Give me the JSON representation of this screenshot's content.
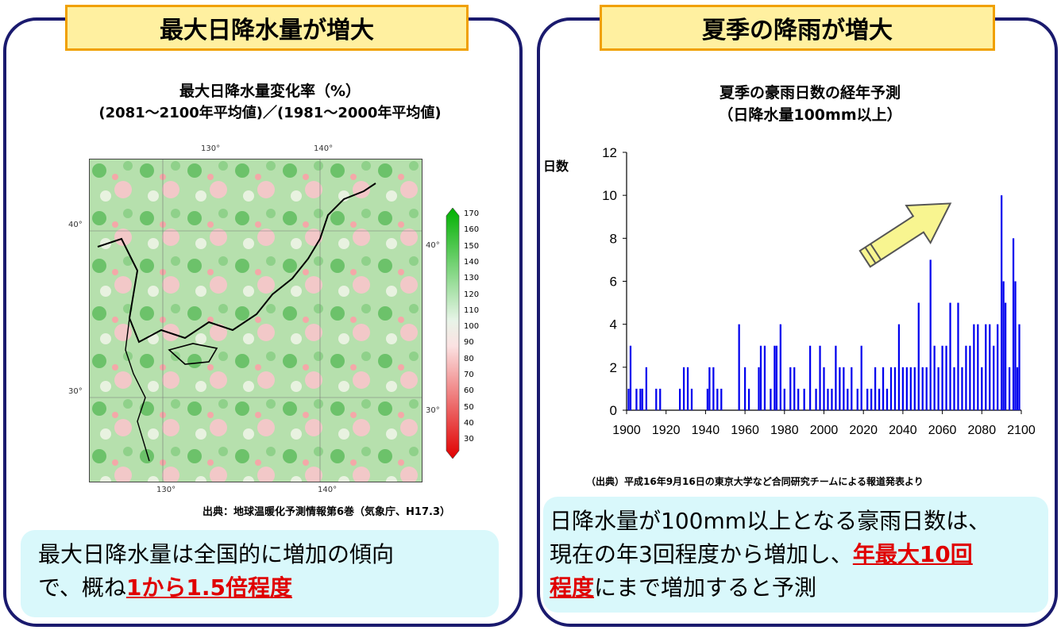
{
  "left": {
    "banner": "最大日降水量が増大",
    "map_title_1": "最大日降水量変化率（%）",
    "map_title_2": "(2081～2100年平均値)／(1981～2000年平均値)",
    "lon_labels": [
      "130°",
      "140°"
    ],
    "lat_labels": [
      "40°",
      "30°"
    ],
    "colorbar": [
      "170",
      "160",
      "150",
      "140",
      "130",
      "120",
      "110",
      "100",
      "90",
      "80",
      "70",
      "60",
      "50",
      "40",
      "30"
    ],
    "source": "出典：地球温暖化予測情報第6巻（気象庁、H17.3）",
    "callout_1": "最大日降水量は全国的に増加の傾向",
    "callout_2a": "で、概ね",
    "callout_2b": "1から1.5倍程度"
  },
  "right": {
    "banner": "夏季の降雨が増大",
    "source": "（出典）平成16年9月16日の東京大学など合同研究チームによる報道発表より",
    "callout_1": "日降水量が100mm以上となる豪雨日数は、",
    "callout_2a": "現在の年3回程度から増加し、",
    "callout_2b": "年最大10回",
    "callout_3a": "程度",
    "callout_3b": "にまで増加すると予測"
  },
  "chart_data": {
    "type": "bar",
    "title": "夏季の豪雨日数の経年予測",
    "subtitle": "（日降水量100mm以上）",
    "ylabel": "日数",
    "xlabel": "",
    "ylim": [
      0,
      12
    ],
    "xlim": [
      1900,
      2100
    ],
    "yticks": [
      0,
      2,
      4,
      6,
      8,
      10,
      12
    ],
    "xticks": [
      1900,
      1920,
      1940,
      1960,
      1980,
      2000,
      2020,
      2040,
      2060,
      2080,
      2100
    ],
    "series_color": "#0000ee",
    "x": [
      1901,
      1902,
      1905,
      1907,
      1908,
      1910,
      1915,
      1917,
      1927,
      1929,
      1931,
      1933,
      1941,
      1942,
      1944,
      1946,
      1948,
      1957,
      1960,
      1962,
      1967,
      1968,
      1970,
      1973,
      1975,
      1976,
      1978,
      1980,
      1983,
      1985,
      1987,
      1990,
      1993,
      1996,
      1998,
      2000,
      2002,
      2004,
      2006,
      2008,
      2010,
      2012,
      2014,
      2017,
      2019,
      2022,
      2024,
      2026,
      2028,
      2030,
      2032,
      2034,
      2036,
      2038,
      2040,
      2042,
      2044,
      2046,
      2048,
      2050,
      2052,
      2054,
      2056,
      2058,
      2060,
      2062,
      2064,
      2066,
      2068,
      2070,
      2072,
      2074,
      2076,
      2078,
      2080,
      2082,
      2084,
      2086,
      2088,
      2090,
      2091,
      2092,
      2094,
      2096,
      2097,
      2098,
      2099
    ],
    "values": [
      1,
      3,
      1,
      1,
      1,
      2,
      1,
      1,
      1,
      2,
      2,
      1,
      1,
      2,
      2,
      1,
      1,
      4,
      2,
      1,
      2,
      3,
      3,
      1,
      3,
      3,
      4,
      1,
      2,
      2,
      1,
      1,
      3,
      1,
      3,
      2,
      1,
      1,
      3,
      2,
      2,
      1,
      2,
      1,
      3,
      1,
      1,
      2,
      1,
      2,
      1,
      2,
      2,
      4,
      2,
      2,
      2,
      2,
      5,
      2,
      2,
      7,
      3,
      2,
      3,
      3,
      5,
      2,
      5,
      2,
      3,
      3,
      4,
      4,
      2,
      4,
      4,
      3,
      4,
      10,
      6,
      5,
      2,
      8,
      6,
      2,
      4
    ],
    "annotation": "upward-trend-arrow"
  }
}
